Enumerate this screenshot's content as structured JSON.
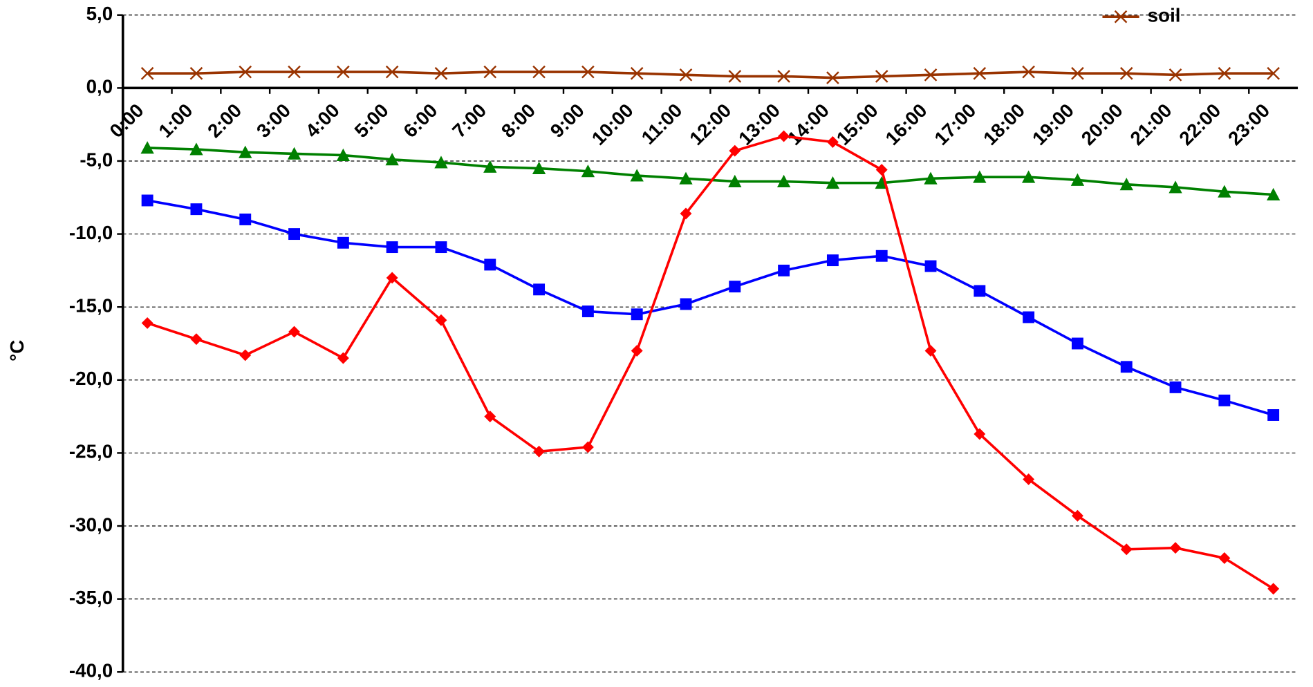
{
  "chart_data": {
    "type": "line",
    "y_label": "°C",
    "categories": [
      "0:00",
      "1:00",
      "2:00",
      "3:00",
      "4:00",
      "5:00",
      "6:00",
      "7:00",
      "8:00",
      "9:00",
      "10:00",
      "11:00",
      "12:00",
      "13:00",
      "14:00",
      "15:00",
      "16:00",
      "17:00",
      "18:00",
      "19:00",
      "20:00",
      "21:00",
      "22:00",
      "23:00"
    ],
    "series": [
      {
        "name": "soil",
        "color": "#993300",
        "marker": "x",
        "values": [
          1.0,
          1.0,
          1.1,
          1.1,
          1.1,
          1.1,
          1.0,
          1.1,
          1.1,
          1.1,
          1.0,
          0.9,
          0.8,
          0.8,
          0.7,
          0.8,
          0.9,
          1.0,
          1.1,
          1.0,
          1.0,
          0.9,
          1.0,
          1.0
        ]
      },
      {
        "color": "#008000",
        "marker": "triangle",
        "values": [
          -4.1,
          -4.2,
          -4.4,
          -4.5,
          -4.6,
          -4.9,
          -5.1,
          -5.4,
          -5.5,
          -5.7,
          -6.0,
          -6.2,
          -6.4,
          -6.4,
          -6.5,
          -6.5,
          -6.2,
          -6.1,
          -6.1,
          -6.3,
          -6.6,
          -6.8,
          -7.1,
          -7.3
        ]
      },
      {
        "color": "#0000ff",
        "marker": "square",
        "values": [
          -7.7,
          -8.3,
          -9.0,
          -10.0,
          -10.6,
          -10.9,
          -10.9,
          -12.1,
          -13.8,
          -15.3,
          -15.5,
          -14.8,
          -13.6,
          -12.5,
          -11.8,
          -11.5,
          -12.2,
          -13.9,
          -15.7,
          -17.5,
          -19.1,
          -20.5,
          -21.4,
          -22.4
        ]
      },
      {
        "color": "#ff0000",
        "marker": "diamond",
        "values": [
          -16.1,
          -17.2,
          -18.3,
          -16.7,
          -18.5,
          -13.0,
          -15.9,
          -22.5,
          -24.9,
          -24.6,
          -18.0,
          -8.6,
          -4.3,
          -3.3,
          -3.7,
          -5.6,
          -18.0,
          -23.7,
          -26.8,
          -29.3,
          -31.6,
          -31.5,
          -32.2,
          -34.3
        ]
      }
    ],
    "ylim": [
      -40,
      5
    ],
    "yticks": [
      {
        "value": -40,
        "label": "-40,0"
      },
      {
        "value": -35,
        "label": "-35,0"
      },
      {
        "value": -30,
        "label": "-30,0"
      },
      {
        "value": -25,
        "label": "-25,0"
      },
      {
        "value": -20,
        "label": "-20,0"
      },
      {
        "value": -15,
        "label": "-15,0"
      },
      {
        "value": -10,
        "label": "-10,0"
      },
      {
        "value": -5,
        "label": "-5,0"
      },
      {
        "value": 0,
        "label": "0,0"
      },
      {
        "value": 5,
        "label": "5,0"
      }
    ],
    "grid": true,
    "legend": "top-right"
  }
}
